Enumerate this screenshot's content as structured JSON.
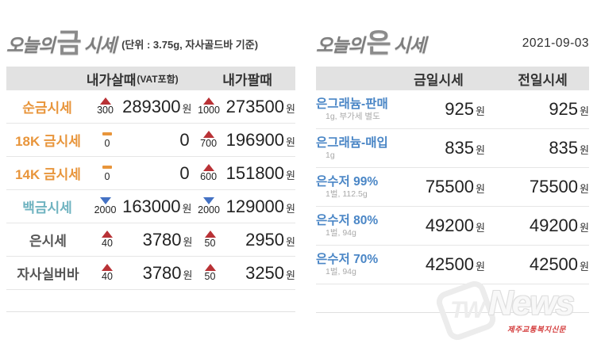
{
  "date": "2021-09-03",
  "gold": {
    "title_prefix": "오늘의",
    "title_metal": "금",
    "title_suffix": "시세",
    "title_note": "(단위 : 3.75g, 자사골드바 기준)",
    "columns": {
      "buy": "내가살때",
      "buy_note": "(VAT포함)",
      "sell": "내가팔때"
    },
    "rows": [
      {
        "label": "순금시세",
        "label_color": "#e8953b",
        "buy_dir": "up",
        "buy_change": "300",
        "buy": "289300",
        "buy_unit": "원",
        "sell_dir": "up",
        "sell_change": "1000",
        "sell": "273500",
        "sell_unit": "원"
      },
      {
        "label": "18K 금시세",
        "label_color": "#e8953b",
        "buy_dir": "flat",
        "buy_change": "0",
        "buy": "0",
        "buy_unit": "",
        "sell_dir": "up",
        "sell_change": "700",
        "sell": "196900",
        "sell_unit": "원"
      },
      {
        "label": "14K 금시세",
        "label_color": "#e8953b",
        "buy_dir": "flat",
        "buy_change": "0",
        "buy": "0",
        "buy_unit": "",
        "sell_dir": "up",
        "sell_change": "600",
        "sell": "151800",
        "sell_unit": "원"
      },
      {
        "label": "백금시세",
        "label_color": "#6fb3c0",
        "buy_dir": "down",
        "buy_change": "2000",
        "buy": "163000",
        "buy_unit": "원",
        "sell_dir": "down",
        "sell_change": "2000",
        "sell": "129000",
        "sell_unit": "원"
      },
      {
        "label": "은시세",
        "label_color": "#555555",
        "buy_dir": "up",
        "buy_change": "40",
        "buy": "3780",
        "buy_unit": "원",
        "sell_dir": "up",
        "sell_change": "50",
        "sell": "2950",
        "sell_unit": "원"
      },
      {
        "label": "자사실버바",
        "label_color": "#555555",
        "buy_dir": "up",
        "buy_change": "40",
        "buy": "3780",
        "buy_unit": "원",
        "sell_dir": "up",
        "sell_change": "50",
        "sell": "3250",
        "sell_unit": "원"
      }
    ]
  },
  "silver": {
    "title_prefix": "오늘의",
    "title_metal": "은",
    "title_suffix": "시세",
    "columns": {
      "today": "금일시세",
      "prev": "전일시세"
    },
    "rows": [
      {
        "label": "은그래늄-판매",
        "sub": "1g, 부가세 별도",
        "today": "925",
        "prev": "925",
        "unit": "원"
      },
      {
        "label": "은그래늄-매입",
        "sub": "1g",
        "today": "835",
        "prev": "835",
        "unit": "원"
      },
      {
        "label": "은수저 99%",
        "sub": "1벌, 112.5g",
        "today": "75500",
        "prev": "75500",
        "unit": "원"
      },
      {
        "label": "은수저 80%",
        "sub": "1벌, 94g",
        "today": "49200",
        "prev": "49200",
        "unit": "원"
      },
      {
        "label": "은수저 70%",
        "sub": "1벌, 94g",
        "today": "42500",
        "prev": "42500",
        "unit": "원"
      }
    ]
  },
  "watermark": {
    "tw": "TW",
    "news": "News",
    "subtitle": "제주교통복지신문"
  },
  "colors": {
    "accent_blue": "#4a86c6",
    "up_red": "#b93236",
    "down_blue": "#4472c4",
    "flat_orange": "#e8953b",
    "label_orange": "#e8953b",
    "label_teal": "#6fb3c0",
    "label_dark": "#555555",
    "header_bg": "#e2e2e2",
    "watermark_red": "#d43c3c"
  }
}
